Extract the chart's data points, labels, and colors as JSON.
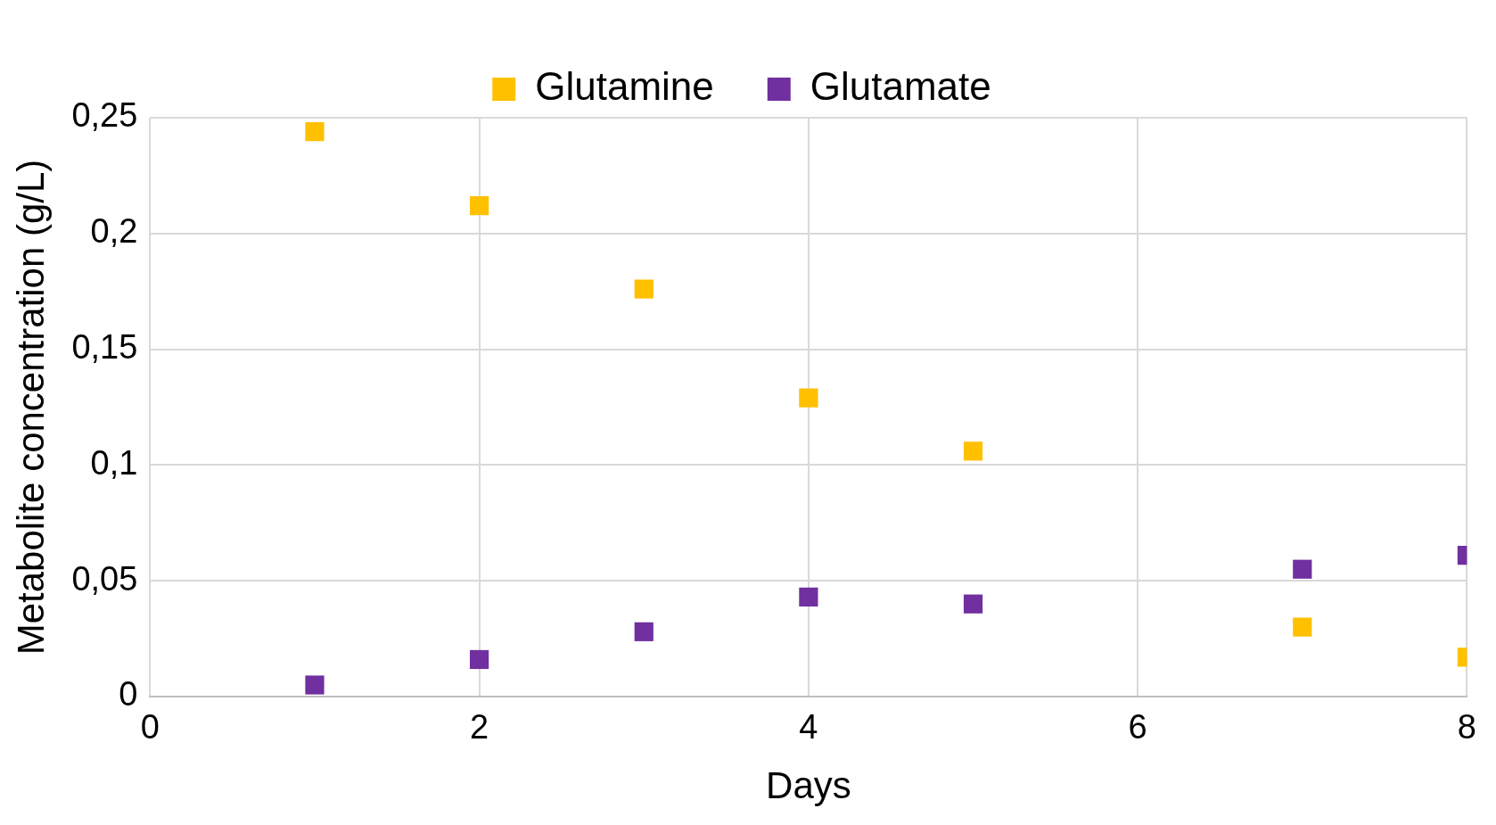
{
  "chart_data": {
    "type": "scatter",
    "xlabel": "Days",
    "ylabel": "Metabolite concentration (g/L)",
    "x": [
      1,
      2,
      3,
      4,
      5,
      7,
      8
    ],
    "series": [
      {
        "name": "Glutamine",
        "color": "#ffc000",
        "values": [
          0.244,
          0.212,
          0.176,
          0.129,
          0.106,
          0.03,
          0.017
        ]
      },
      {
        "name": "Glutamate",
        "color": "#7030a0",
        "values": [
          0.005,
          0.016,
          0.028,
          0.043,
          0.04,
          0.055,
          0.061
        ]
      }
    ],
    "xlim": [
      0,
      8
    ],
    "xticks": [
      0,
      2,
      4,
      6,
      8
    ],
    "ylim": [
      0,
      0.25
    ],
    "yticks": [
      {
        "value": 0,
        "label": "0"
      },
      {
        "value": 0.05,
        "label": "0,05"
      },
      {
        "value": 0.1,
        "label": "0,1"
      },
      {
        "value": 0.15,
        "label": "0,15"
      },
      {
        "value": 0.2,
        "label": "0,2"
      },
      {
        "value": 0.25,
        "label": "0,25"
      }
    ],
    "grid": true,
    "legend": "top",
    "marker": "square"
  }
}
